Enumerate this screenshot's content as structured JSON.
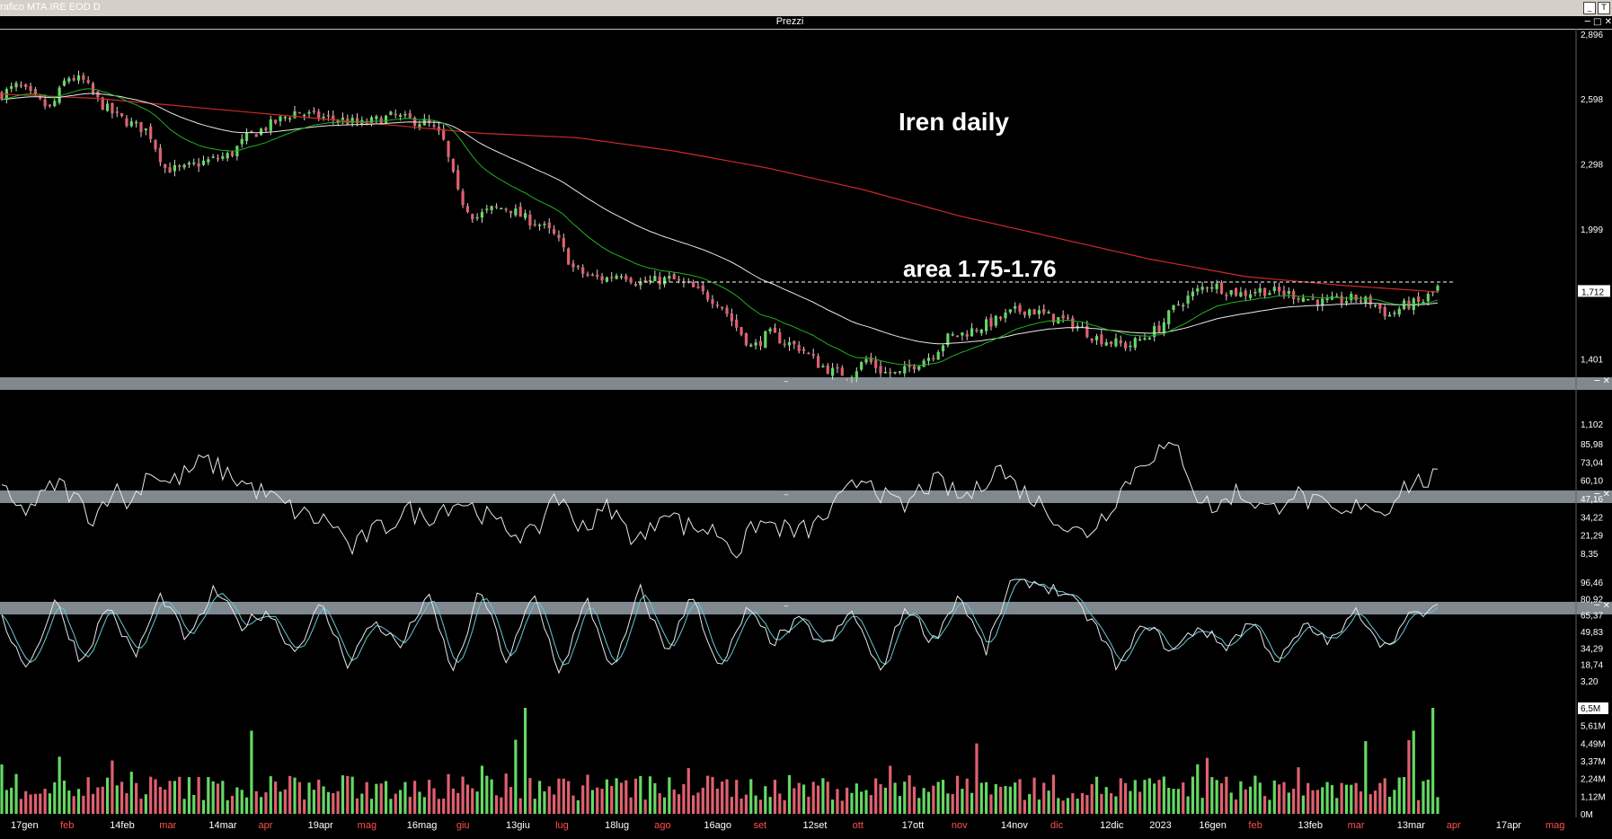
{
  "window": {
    "title": "rafico MTA.IRE EOD D",
    "panel_title": "Prezzi"
  },
  "annotations": {
    "title": "Iren daily",
    "area_label": "area 1.75-1.76",
    "area_level": 1.755
  },
  "colors": {
    "bg": "#000000",
    "up": "#64d864",
    "down": "#e06070",
    "ma_short": "#22b022",
    "ma_mid": "#e8e8e8",
    "ma_long": "#cc2a2a",
    "stoch_d": "#66c8d8"
  },
  "price_axis": {
    "ticks": [
      "2,896",
      "2,598",
      "2,298",
      "1,999",
      "1,712",
      "1,401",
      "1,102"
    ],
    "current": "1,712",
    "ylim": [
      1.102,
      2.896
    ]
  },
  "rsi_axis": {
    "ticks": [
      "85,98",
      "73,04",
      "60,10",
      "47,16",
      "34,22",
      "21,29",
      "8,35"
    ]
  },
  "stoch_axis": {
    "ticks": [
      "96,46",
      "80,92",
      "65,37",
      "49,83",
      "34,29",
      "18,74",
      "3,20"
    ]
  },
  "volume_axis": {
    "ticks": [
      "6,5M",
      "5,61M",
      "4,49M",
      "3,37M",
      "2,24M",
      "1,12M",
      "0M"
    ]
  },
  "x_axis": {
    "labels": [
      {
        "text": "17gen",
        "color": "#ffffff"
      },
      {
        "text": "feb",
        "color": "#ff5050"
      },
      {
        "text": "14feb",
        "color": "#ffffff"
      },
      {
        "text": "mar",
        "color": "#ff5050"
      },
      {
        "text": "14mar",
        "color": "#ffffff"
      },
      {
        "text": "apr",
        "color": "#ff5050"
      },
      {
        "text": "19apr",
        "color": "#ffffff"
      },
      {
        "text": "mag",
        "color": "#ff5050"
      },
      {
        "text": "16mag",
        "color": "#ffffff"
      },
      {
        "text": "giu",
        "color": "#ff5050"
      },
      {
        "text": "13giu",
        "color": "#ffffff"
      },
      {
        "text": "lug",
        "color": "#ff5050"
      },
      {
        "text": "18lug",
        "color": "#ffffff"
      },
      {
        "text": "ago",
        "color": "#ff5050"
      },
      {
        "text": "16ago",
        "color": "#ffffff"
      },
      {
        "text": "set",
        "color": "#ff5050"
      },
      {
        "text": "12set",
        "color": "#ffffff"
      },
      {
        "text": "ott",
        "color": "#ff5050"
      },
      {
        "text": "17ott",
        "color": "#ffffff"
      },
      {
        "text": "nov",
        "color": "#ff5050"
      },
      {
        "text": "14nov",
        "color": "#ffffff"
      },
      {
        "text": "dic",
        "color": "#ff5050"
      },
      {
        "text": "12dic",
        "color": "#ffffff"
      },
      {
        "text": "2023",
        "color": "#ffffff"
      },
      {
        "text": "16gen",
        "color": "#ffffff"
      },
      {
        "text": "feb",
        "color": "#ff5050"
      },
      {
        "text": "13feb",
        "color": "#ffffff"
      },
      {
        "text": "mar",
        "color": "#ff5050"
      },
      {
        "text": "13mar",
        "color": "#ffffff"
      },
      {
        "text": "apr",
        "color": "#ff5050"
      },
      {
        "text": "17apr",
        "color": "#ffffff"
      },
      {
        "text": "mag",
        "color": "#ff5050"
      }
    ]
  },
  "chart_data": {
    "type": "line",
    "price_anchors": [
      2.62,
      2.66,
      2.6,
      2.55,
      2.7,
      2.68,
      2.58,
      2.52,
      2.48,
      2.45,
      2.28,
      2.27,
      2.3,
      2.32,
      2.34,
      2.42,
      2.46,
      2.5,
      2.54,
      2.52,
      2.51,
      2.5,
      2.48,
      2.5,
      2.52,
      2.5,
      2.49,
      2.42,
      2.15,
      2.05,
      2.09,
      2.1,
      2.05,
      2.02,
      1.96,
      1.82,
      1.78,
      1.77,
      1.8,
      1.75,
      1.76,
      1.77,
      1.74,
      1.7,
      1.66,
      1.55,
      1.45,
      1.52,
      1.48,
      1.45,
      1.38,
      1.34,
      1.33,
      1.4,
      1.34,
      1.33,
      1.38,
      1.42,
      1.5,
      1.52,
      1.55,
      1.58,
      1.62,
      1.63,
      1.6,
      1.58,
      1.55,
      1.5,
      1.48,
      1.46,
      1.5,
      1.55,
      1.65,
      1.7,
      1.75,
      1.72,
      1.7,
      1.72,
      1.71,
      1.7,
      1.68,
      1.66,
      1.67,
      1.68,
      1.66,
      1.6,
      1.65,
      1.66,
      1.73
    ],
    "rsi_anchors": [
      55,
      40,
      48,
      62,
      50,
      35,
      58,
      45,
      72,
      60,
      68,
      78,
      70,
      62,
      55,
      48,
      40,
      35,
      32,
      12,
      25,
      30,
      42,
      35,
      44,
      48,
      40,
      30,
      25,
      22,
      55,
      35,
      30,
      45,
      25,
      20,
      45,
      30,
      28,
      25,
      10,
      32,
      30,
      25,
      28,
      40,
      55,
      68,
      50,
      42,
      58,
      62,
      50,
      55,
      75,
      60,
      50,
      40,
      26,
      25,
      40,
      60,
      78,
      86,
      85,
      50,
      42,
      55,
      48,
      40,
      55,
      48,
      42,
      35,
      50,
      38,
      58,
      62,
      65
    ],
    "stoch_anchors": [
      60,
      15,
      80,
      20,
      75,
      25,
      85,
      40,
      90,
      55,
      70,
      30,
      75,
      20,
      60,
      35,
      85,
      10,
      90,
      20,
      85,
      10,
      80,
      10,
      90,
      30,
      85,
      10,
      70,
      40,
      60,
      35,
      70,
      10,
      75,
      40,
      85,
      30,
      100,
      95,
      85,
      60,
      15,
      60,
      30,
      55,
      35,
      60,
      20,
      55,
      40,
      70,
      35,
      65,
      70
    ]
  }
}
